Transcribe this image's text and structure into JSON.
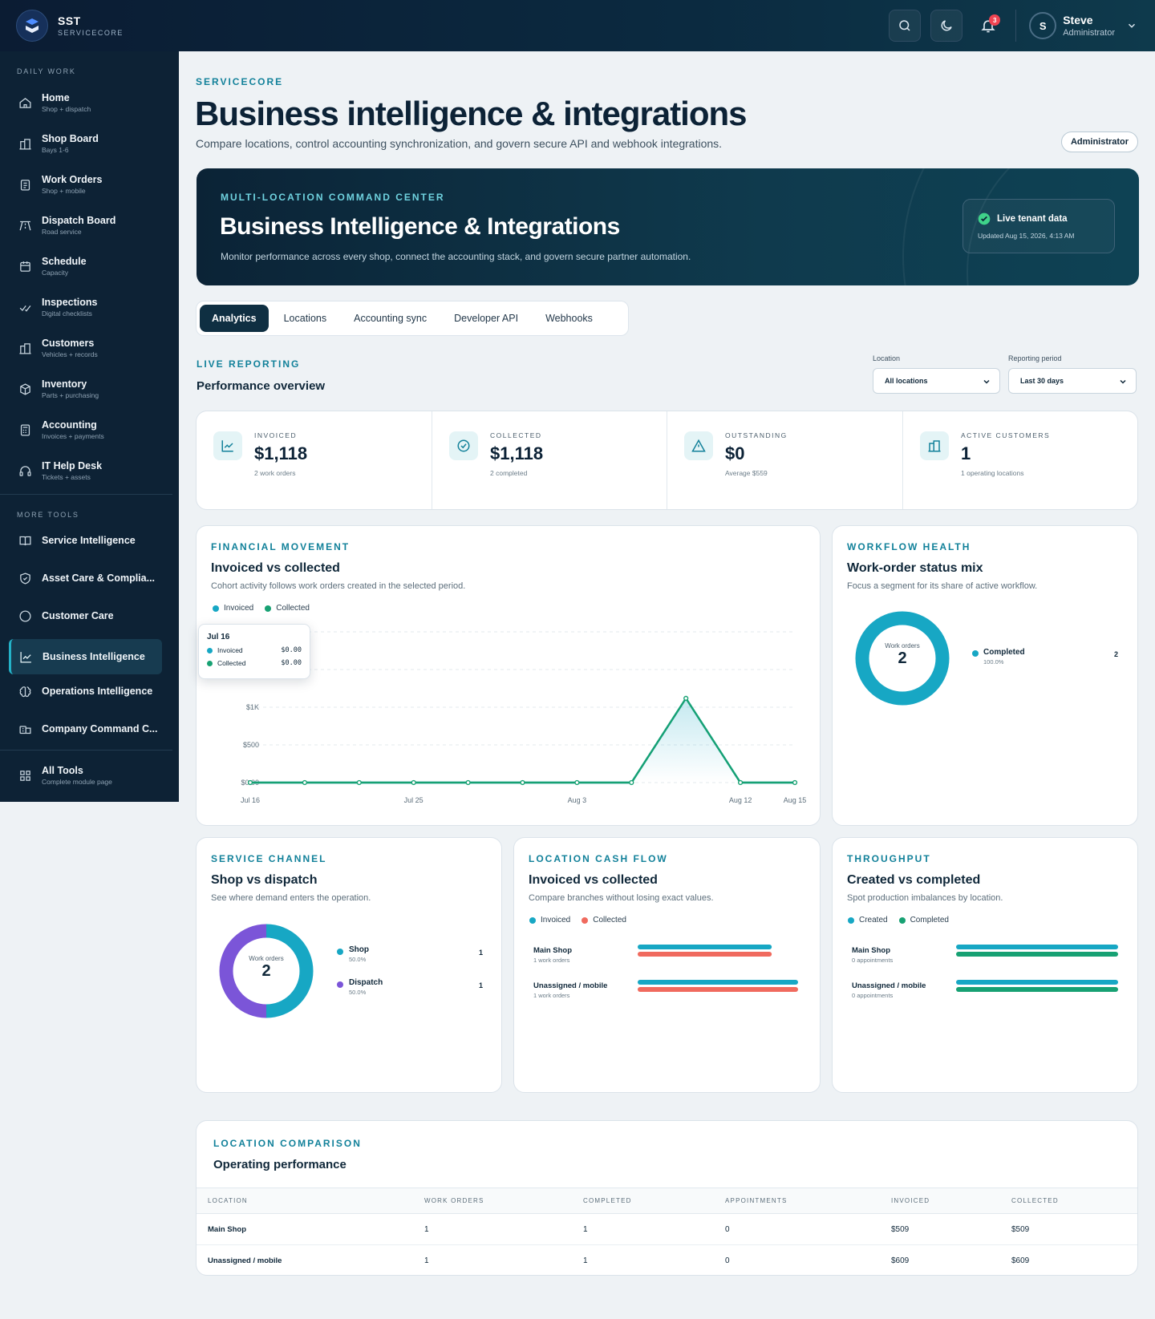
{
  "colors": {
    "accent": "#12819a",
    "invoiced": "#17a7c4",
    "collected": "#17a173",
    "dispatch": "#7b55d8",
    "cash_collected": "#f06a5e",
    "sidebar": "#0d2235",
    "badge": "#ef4452"
  },
  "header": {
    "brand": "SST",
    "brand_sub": "SERVICECORE",
    "notifications": "3",
    "user_initial": "S",
    "user_name": "Steve",
    "user_role": "Administrator"
  },
  "sidebar": {
    "section_daily": "DAILY WORK",
    "daily": [
      {
        "label": "Home",
        "sub": "Shop + dispatch",
        "icon": "home-icon"
      },
      {
        "label": "Shop Board",
        "sub": "Bays 1-6",
        "icon": "building-icon"
      },
      {
        "label": "Work Orders",
        "sub": "Shop + mobile",
        "icon": "clipboard-icon"
      },
      {
        "label": "Dispatch Board",
        "sub": "Road service",
        "icon": "road-icon"
      },
      {
        "label": "Schedule",
        "sub": "Capacity",
        "icon": "calendar-icon"
      },
      {
        "label": "Inspections",
        "sub": "Digital checklists",
        "icon": "check-icon"
      },
      {
        "label": "Customers",
        "sub": "Vehicles + records",
        "icon": "building-icon"
      },
      {
        "label": "Inventory",
        "sub": "Parts + purchasing",
        "icon": "box-icon"
      },
      {
        "label": "Accounting",
        "sub": "Invoices + payments",
        "icon": "calculator-icon"
      },
      {
        "label": "IT Help Desk",
        "sub": "Tickets + assets",
        "icon": "headset-icon"
      }
    ],
    "section_more": "MORE TOOLS",
    "more": [
      {
        "label": "Service Intelligence",
        "icon": "book-icon"
      },
      {
        "label": "Asset Care & Complia...",
        "icon": "shield-icon"
      },
      {
        "label": "Customer Care",
        "icon": "chat-icon"
      },
      {
        "label": "Business Intelligence",
        "icon": "chart-icon"
      },
      {
        "label": "Operations Intelligence",
        "icon": "brain-icon"
      },
      {
        "label": "Company Command C...",
        "icon": "command-icon"
      }
    ],
    "all_tools": {
      "label": "All Tools",
      "sub": "Complete module page"
    }
  },
  "page": {
    "eyebrow": "SERVICECORE",
    "title": "Business intelligence & integrations",
    "subtitle": "Compare locations, control accounting synchronization, and govern secure API and webhook integrations.",
    "role_pill": "Administrator"
  },
  "hero": {
    "eyebrow": "MULTI-LOCATION COMMAND CENTER",
    "title": "Business Intelligence & Integrations",
    "desc": "Monitor performance across every shop, connect the accounting stack, and govern secure partner automation.",
    "live_label": "Live tenant data",
    "live_updated": "Updated Aug 15, 2026, 4:13 AM"
  },
  "tabs": [
    "Analytics",
    "Locations",
    "Accounting sync",
    "Developer API",
    "Webhooks"
  ],
  "reporting": {
    "eyebrow": "LIVE REPORTING",
    "title": "Performance overview",
    "location_label": "Location",
    "location_value": "All locations",
    "period_label": "Reporting period",
    "period_value": "Last 30 days"
  },
  "kpis": [
    {
      "label": "INVOICED",
      "value": "$1,118",
      "sub": "2 work orders",
      "icon": "trend-icon"
    },
    {
      "label": "COLLECTED",
      "value": "$1,118",
      "sub": "2 completed",
      "icon": "check-circle-icon"
    },
    {
      "label": "OUTSTANDING",
      "value": "$0",
      "sub": "Average $559",
      "icon": "alert-icon"
    },
    {
      "label": "ACTIVE CUSTOMERS",
      "value": "1",
      "sub": "1 operating locations",
      "icon": "building-icon"
    }
  ],
  "financial": {
    "eyebrow": "FINANCIAL MOVEMENT",
    "title": "Invoiced vs collected",
    "desc": "Cohort activity follows work orders created in the selected period.",
    "legend": [
      "Invoiced",
      "Collected"
    ],
    "tooltip": {
      "date": "Jul 16",
      "rows": [
        {
          "label": "Invoiced",
          "value": "$0.00"
        },
        {
          "label": "Collected",
          "value": "$0.00"
        }
      ]
    }
  },
  "chart_data": [
    {
      "type": "area",
      "ytick_labels": [
        "$0.00",
        "$500",
        "$1K"
      ],
      "xtick_labels": [
        "Jul 16",
        "Jul 25",
        "Aug 3",
        "Aug 12",
        "Aug 15"
      ],
      "x": [
        "Jul 16",
        "Jul 19",
        "Jul 22",
        "Jul 25",
        "Jul 28",
        "Jul 31",
        "Aug 3",
        "Aug 6",
        "Aug 9",
        "Aug 12",
        "Aug 15"
      ],
      "ylim": [
        0,
        2000
      ],
      "series": [
        {
          "name": "Invoiced",
          "values": [
            0,
            0,
            0,
            0,
            0,
            0,
            0,
            0,
            1118,
            0,
            0
          ]
        },
        {
          "name": "Collected",
          "values": [
            0,
            0,
            0,
            0,
            0,
            0,
            0,
            0,
            1118,
            0,
            0
          ]
        }
      ]
    },
    {
      "type": "pie",
      "center_label": "Work orders",
      "center_value": "2",
      "categories": [
        "Completed"
      ],
      "values": [
        2
      ],
      "percents": [
        "100.0%"
      ]
    },
    {
      "type": "pie",
      "center_label": "Work orders",
      "center_value": "2",
      "categories": [
        "Shop",
        "Dispatch"
      ],
      "values": [
        1,
        1
      ],
      "percents": [
        "50.0%",
        "50.0%"
      ]
    },
    {
      "type": "bar",
      "categories": [
        "Main Shop",
        "Unassigned / mobile"
      ],
      "series": [
        {
          "name": "Invoiced",
          "values": [
            509,
            609
          ]
        },
        {
          "name": "Collected",
          "values": [
            509,
            609
          ]
        }
      ]
    },
    {
      "type": "bar",
      "categories": [
        "Main Shop",
        "Unassigned / mobile"
      ],
      "series": [
        {
          "name": "Created",
          "values": [
            1,
            1
          ]
        },
        {
          "name": "Completed",
          "values": [
            1,
            1
          ]
        }
      ]
    }
  ],
  "workflow": {
    "eyebrow": "WORKFLOW HEALTH",
    "title": "Work-order status mix",
    "desc": "Focus a segment for its share of active workflow.",
    "center_label": "Work orders",
    "center_value": "2",
    "legend": [
      {
        "label": "Completed",
        "pct": "100.0%",
        "count": "2"
      }
    ]
  },
  "channel": {
    "eyebrow": "SERVICE CHANNEL",
    "title": "Shop vs dispatch",
    "desc": "See where demand enters the operation.",
    "center_label": "Work orders",
    "center_value": "2",
    "legend": [
      {
        "label": "Shop",
        "pct": "50.0%",
        "count": "1"
      },
      {
        "label": "Dispatch",
        "pct": "50.0%",
        "count": "1"
      }
    ]
  },
  "cashflow": {
    "eyebrow": "LOCATION CASH FLOW",
    "title": "Invoiced vs collected",
    "desc": "Compare branches without losing exact values.",
    "legend": [
      "Invoiced",
      "Collected"
    ],
    "rows": [
      {
        "name": "Main Shop",
        "sub": "1 work orders"
      },
      {
        "name": "Unassigned / mobile",
        "sub": "1 work orders"
      }
    ]
  },
  "throughput": {
    "eyebrow": "THROUGHPUT",
    "title": "Created vs completed",
    "desc": "Spot production imbalances by location.",
    "legend": [
      "Created",
      "Completed"
    ],
    "rows": [
      {
        "name": "Main Shop",
        "sub": "0 appointments"
      },
      {
        "name": "Unassigned / mobile",
        "sub": "0 appointments"
      }
    ]
  },
  "comparison": {
    "eyebrow": "LOCATION COMPARISON",
    "title": "Operating performance",
    "columns": [
      "LOCATION",
      "WORK ORDERS",
      "COMPLETED",
      "APPOINTMENTS",
      "INVOICED",
      "COLLECTED"
    ],
    "rows": [
      [
        "Main Shop",
        "1",
        "1",
        "0",
        "$509",
        "$509"
      ],
      [
        "Unassigned / mobile",
        "1",
        "1",
        "0",
        "$609",
        "$609"
      ]
    ]
  }
}
